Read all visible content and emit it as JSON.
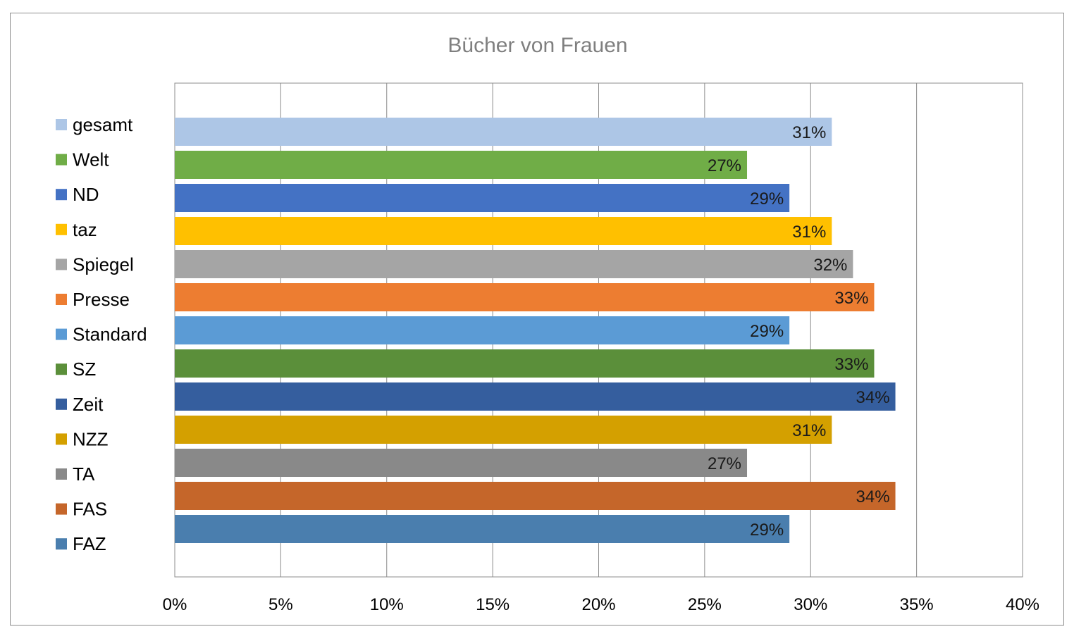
{
  "chart_data": {
    "type": "bar",
    "orientation": "horizontal",
    "title": "Bücher von Frauen",
    "categories": [
      "gesamt",
      "Welt",
      "ND",
      "taz",
      "Spiegel",
      "Presse",
      "Standard",
      "SZ",
      "Zeit",
      "NZZ",
      "TA",
      "FAS",
      "FAZ"
    ],
    "values": [
      0.31,
      0.27,
      0.29,
      0.31,
      0.32,
      0.33,
      0.29,
      0.33,
      0.34,
      0.31,
      0.27,
      0.34,
      0.29
    ],
    "value_labels": [
      "31%",
      "27%",
      "29%",
      "31%",
      "32%",
      "33%",
      "29%",
      "33%",
      "34%",
      "31%",
      "27%",
      "34%",
      "29%"
    ],
    "colors": [
      "#adc6e6",
      "#70ad47",
      "#4472c4",
      "#ffc000",
      "#a5a5a5",
      "#ed7d31",
      "#5b9bd5",
      "#5b8f3a",
      "#355e9e",
      "#d4a000",
      "#898989",
      "#c5662a",
      "#4a7eae"
    ],
    "xlim": [
      0,
      0.4
    ],
    "x_ticks": [
      0,
      0.05,
      0.1,
      0.15,
      0.2,
      0.25,
      0.3,
      0.35,
      0.4
    ],
    "x_tick_labels": [
      "0%",
      "5%",
      "10%",
      "15%",
      "20%",
      "25%",
      "30%",
      "35%",
      "40%"
    ],
    "xlabel": "",
    "ylabel": "",
    "grid": true,
    "legend": "left",
    "data_labels": "inside-end"
  }
}
